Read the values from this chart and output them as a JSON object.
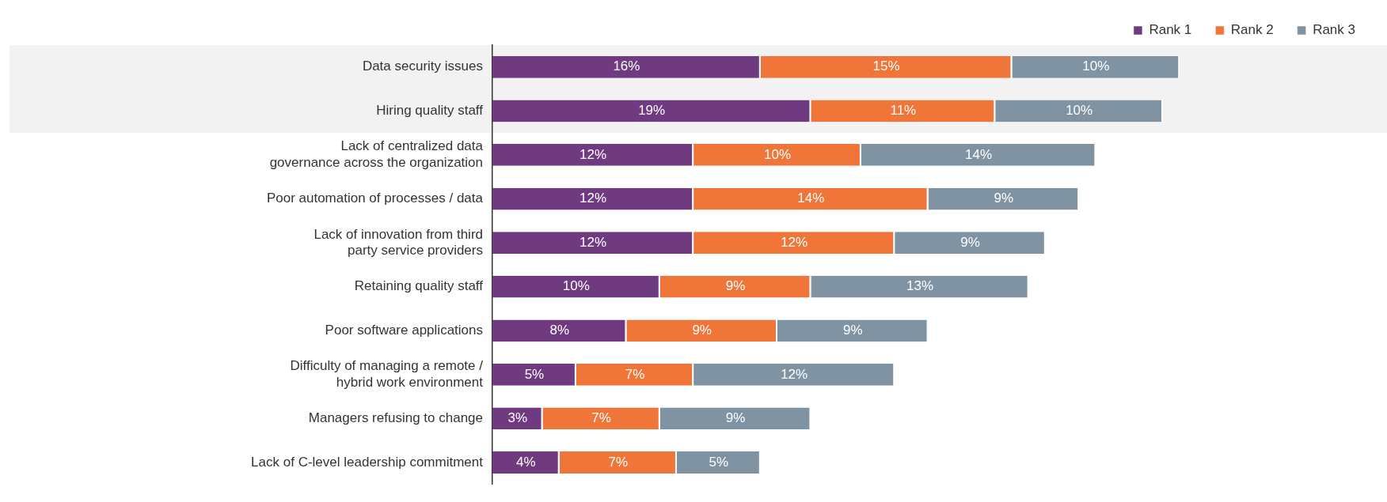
{
  "chart_data": {
    "type": "bar",
    "orientation": "horizontal",
    "stacked": true,
    "legend": "top right",
    "categories": [
      "Data security issues",
      "Hiring quality staff",
      "Lack of centralized data governance across the organization",
      "Poor automation of processes / data",
      "Lack of innovation from third party service providers",
      "Retaining quality staff",
      "Poor software applications",
      "Difficulty of managing a remote / hybrid work environment",
      "Managers refusing to change",
      "Lack of C-level leadership commitment"
    ],
    "series": [
      {
        "name": "Rank 1",
        "color": "#6f3a7f",
        "values": [
          16,
          19,
          12,
          12,
          12,
          10,
          8,
          5,
          3,
          4
        ],
        "value_labels": [
          "16%",
          "19%",
          "12%",
          "12%",
          "12%",
          "10%",
          "8%",
          "5%",
          "3%",
          "4%"
        ]
      },
      {
        "name": "Rank 2",
        "color": "#f07539",
        "values": [
          15,
          11,
          10,
          14,
          12,
          9,
          9,
          7,
          7,
          7
        ],
        "value_labels": [
          "15%",
          "11%",
          "10%",
          "14%",
          "12%",
          "9%",
          "9%",
          "7%",
          "7%",
          "7%"
        ]
      },
      {
        "name": "Rank 3",
        "color": "#7f93a3",
        "values": [
          10,
          10,
          14,
          9,
          9,
          13,
          9,
          12,
          9,
          5
        ],
        "value_labels": [
          "10%",
          "10%",
          "14%",
          "9%",
          "9%",
          "13%",
          "9%",
          "12%",
          "9%",
          "5%"
        ]
      }
    ],
    "bands": [
      {
        "axis": "y",
        "from": "Data security issues",
        "to": "Hiring quality staff",
        "color": "#f2f2f2"
      }
    ]
  }
}
